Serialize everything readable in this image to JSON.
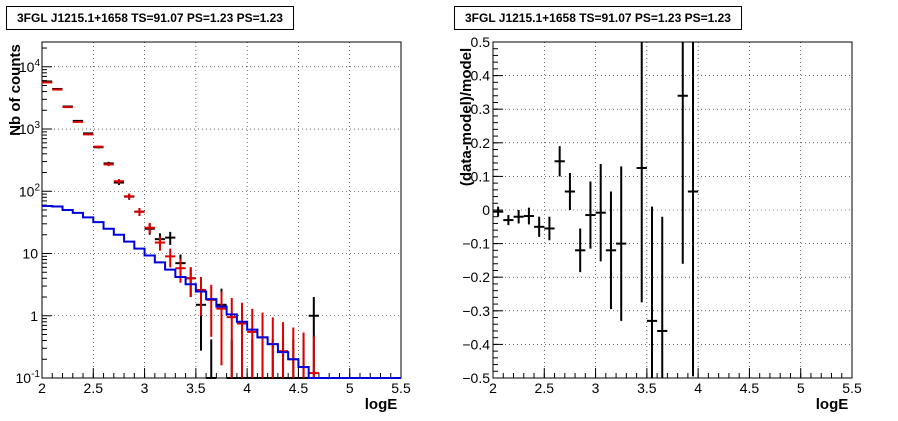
{
  "chart_data": [
    {
      "type": "line",
      "title": "3FGL J1215.1+1658 TS=91.07 PS=1.23 PS=1.23",
      "xlabel": "logE",
      "ylabel": "Nb of counts",
      "xlim": [
        2,
        5.5
      ],
      "ylim": [
        0.1,
        25000
      ],
      "yscale": "log",
      "grid": true,
      "x_ticks": [
        "2",
        "2.5",
        "3",
        "3.5",
        "4",
        "4.5",
        "5",
        "5.5"
      ],
      "y_ticks": [
        {
          "base": "10",
          "exp": "4"
        },
        {
          "base": "10",
          "exp": "3"
        },
        {
          "base": "10",
          "exp": "2"
        },
        {
          "base": "10",
          "exp": ""
        },
        {
          "base": "1",
          "exp": ""
        },
        {
          "base": "10",
          "exp": "-1"
        }
      ],
      "series": [
        {
          "color": "#000000",
          "style": "points",
          "points": [
            {
              "x": 2.05,
              "y": 5800
            },
            {
              "x": 2.15,
              "y": 4400
            },
            {
              "x": 2.25,
              "y": 2300
            },
            {
              "x": 2.35,
              "y": 1350
            },
            {
              "x": 2.45,
              "y": 850
            },
            {
              "x": 2.55,
              "y": 510
            },
            {
              "x": 2.65,
              "y": 280
            },
            {
              "x": 2.75,
              "y": 138
            },
            {
              "x": 2.85,
              "y": 82
            },
            {
              "x": 2.95,
              "y": 47
            },
            {
              "x": 3.05,
              "y": 25
            },
            {
              "x": 3.15,
              "y": 17
            },
            {
              "x": 3.25,
              "y": 18
            },
            {
              "x": 3.35,
              "y": 7
            },
            {
              "x": 3.45,
              "y": 4
            },
            {
              "x": 3.55,
              "y": 1.5
            },
            {
              "x": 3.65,
              "y": 0.1
            },
            {
              "x": 3.75,
              "y": 1.5
            },
            {
              "x": 3.85,
              "y": 0.1
            },
            {
              "x": 3.95,
              "y": 0.1
            },
            {
              "x": 4.05,
              "y": 0.1
            },
            {
              "x": 4.15,
              "y": 0.1
            },
            {
              "x": 4.25,
              "y": 0.1
            },
            {
              "x": 4.35,
              "y": 0.1
            },
            {
              "x": 4.45,
              "y": 0.1
            },
            {
              "x": 4.55,
              "y": 0.1
            },
            {
              "x": 4.65,
              "y": 1
            }
          ]
        },
        {
          "color": "#dd0000",
          "style": "points",
          "points": [
            {
              "x": 2.05,
              "y": 5600
            },
            {
              "x": 2.15,
              "y": 4300
            },
            {
              "x": 2.25,
              "y": 2250
            },
            {
              "x": 2.35,
              "y": 1300
            },
            {
              "x": 2.45,
              "y": 820
            },
            {
              "x": 2.55,
              "y": 520
            },
            {
              "x": 2.65,
              "y": 270
            },
            {
              "x": 2.75,
              "y": 145
            },
            {
              "x": 2.85,
              "y": 83
            },
            {
              "x": 2.95,
              "y": 47
            },
            {
              "x": 3.05,
              "y": 26
            },
            {
              "x": 3.15,
              "y": 15
            },
            {
              "x": 3.25,
              "y": 9
            },
            {
              "x": 3.35,
              "y": 5.8
            },
            {
              "x": 3.45,
              "y": 4
            },
            {
              "x": 3.55,
              "y": 2.6
            },
            {
              "x": 3.65,
              "y": 1.8
            },
            {
              "x": 3.75,
              "y": 1.3
            },
            {
              "x": 3.85,
              "y": 0.95
            },
            {
              "x": 3.95,
              "y": 0.75
            },
            {
              "x": 4.05,
              "y": 0.55
            },
            {
              "x": 4.15,
              "y": 0.45
            },
            {
              "x": 4.25,
              "y": 0.35
            },
            {
              "x": 4.35,
              "y": 0.27
            },
            {
              "x": 4.45,
              "y": 0.2
            },
            {
              "x": 4.55,
              "y": 0.15
            },
            {
              "x": 4.65,
              "y": 0.12
            }
          ]
        },
        {
          "color": "#0000dd",
          "style": "step",
          "points": [
            {
              "x": 2.05,
              "y": 58
            },
            {
              "x": 2.15,
              "y": 57
            },
            {
              "x": 2.25,
              "y": 50
            },
            {
              "x": 2.35,
              "y": 45
            },
            {
              "x": 2.45,
              "y": 38
            },
            {
              "x": 2.55,
              "y": 32
            },
            {
              "x": 2.65,
              "y": 25
            },
            {
              "x": 2.75,
              "y": 20
            },
            {
              "x": 2.85,
              "y": 15.5
            },
            {
              "x": 2.95,
              "y": 12
            },
            {
              "x": 3.05,
              "y": 9.3
            },
            {
              "x": 3.15,
              "y": 7.2
            },
            {
              "x": 3.25,
              "y": 5.5
            },
            {
              "x": 3.35,
              "y": 4.2
            },
            {
              "x": 3.45,
              "y": 3.2
            },
            {
              "x": 3.55,
              "y": 2.45
            },
            {
              "x": 3.65,
              "y": 1.85
            },
            {
              "x": 3.75,
              "y": 1.4
            },
            {
              "x": 3.85,
              "y": 1.05
            },
            {
              "x": 3.95,
              "y": 0.8
            },
            {
              "x": 4.05,
              "y": 0.6
            },
            {
              "x": 4.15,
              "y": 0.45
            },
            {
              "x": 4.25,
              "y": 0.35
            },
            {
              "x": 4.35,
              "y": 0.26
            },
            {
              "x": 4.45,
              "y": 0.2
            },
            {
              "x": 4.55,
              "y": 0.15
            },
            {
              "x": 4.65,
              "y": 0.1
            },
            {
              "x": 4.75,
              "y": 0.1
            },
            {
              "x": 4.85,
              "y": 0.1
            },
            {
              "x": 4.95,
              "y": 0.1
            },
            {
              "x": 5.05,
              "y": 0.1
            },
            {
              "x": 5.15,
              "y": 0.1
            },
            {
              "x": 5.25,
              "y": 0.1
            },
            {
              "x": 5.35,
              "y": 0.1
            },
            {
              "x": 5.45,
              "y": 0.1
            }
          ]
        }
      ]
    },
    {
      "type": "scatter",
      "title": "3FGL J1215.1+1658 TS=91.07 PS=1.23 PS=1.23",
      "xlabel": "logE",
      "ylabel": "(data-model)/model",
      "xlim": [
        2,
        5.5
      ],
      "ylim": [
        -0.5,
        0.5
      ],
      "yscale": "linear",
      "grid": true,
      "x_ticks": [
        "2",
        "2.5",
        "3",
        "3.5",
        "4",
        "4.5",
        "5",
        "5.5"
      ],
      "y_ticks": [
        "0.5",
        "0.4",
        "0.3",
        "0.2",
        "0.1",
        "0",
        "−0.1",
        "−0.2",
        "−0.3",
        "−0.4",
        "−0.5"
      ],
      "series": [
        {
          "color": "#000000",
          "style": "points",
          "points": [
            {
              "x": 2.05,
              "y": -0.005,
              "err": 0.015
            },
            {
              "x": 2.15,
              "y": -0.03,
              "err": 0.015
            },
            {
              "x": 2.25,
              "y": -0.02,
              "err": 0.02
            },
            {
              "x": 2.35,
              "y": -0.018,
              "err": 0.025
            },
            {
              "x": 2.45,
              "y": -0.05,
              "err": 0.03
            },
            {
              "x": 2.55,
              "y": -0.055,
              "err": 0.035
            },
            {
              "x": 2.65,
              "y": 0.145,
              "err": 0.045
            },
            {
              "x": 2.75,
              "y": 0.055,
              "err": 0.055
            },
            {
              "x": 2.85,
              "y": -0.12,
              "err": 0.065
            },
            {
              "x": 2.95,
              "y": -0.015,
              "err": 0.1
            },
            {
              "x": 3.05,
              "y": -0.008,
              "err": 0.145
            },
            {
              "x": 3.15,
              "y": -0.12,
              "err": 0.175
            },
            {
              "x": 3.25,
              "y": -0.1,
              "err": 0.23
            },
            {
              "x": 3.45,
              "y": 0.125,
              "err": 0.4
            },
            {
              "x": 3.55,
              "y": -0.33,
              "err": 0.34
            },
            {
              "x": 3.65,
              "y": -0.36,
              "err": 0.34
            },
            {
              "x": 3.85,
              "y": 0.34,
              "err": 0.5
            },
            {
              "x": 3.95,
              "y": 0.055,
              "err": 0.55
            }
          ]
        }
      ]
    }
  ]
}
